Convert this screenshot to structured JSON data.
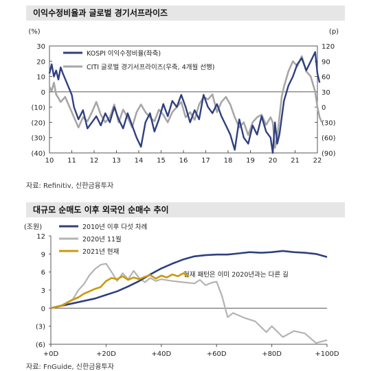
{
  "chart_data": [
    {
      "type": "line",
      "title": "이익수정비율과 글로벌 경기서프라이즈",
      "source": "자료: Refinitiv, 신한금융투자",
      "left_unit": "(%)",
      "right_unit": "(p)",
      "x_tick_labels": [
        "10",
        "11",
        "12",
        "13",
        "14",
        "15",
        "16",
        "17",
        "18",
        "19",
        "20",
        "21",
        "22"
      ],
      "x_range": [
        2010,
        2022
      ],
      "left_ylim": [
        -40,
        30
      ],
      "left_ticks": [
        "30",
        "20",
        "10",
        "0",
        "(10)",
        "(20)",
        "(30)",
        "(40)"
      ],
      "right_ylim": [
        -90,
        120
      ],
      "right_ticks": [
        "120",
        "90",
        "60",
        "30",
        "0",
        "(30)",
        "(60)",
        "(90)"
      ],
      "grid": false,
      "legend_position": "top",
      "series": [
        {
          "name": "KOSPI 이익수정비율(좌축)",
          "color": "#2f3f7f",
          "axis": "left",
          "x": [
            2010.0,
            2010.1,
            2010.2,
            2010.3,
            2010.4,
            2010.5,
            2010.6,
            2010.8,
            2011.0,
            2011.1,
            2011.3,
            2011.5,
            2011.7,
            2011.9,
            2012.1,
            2012.3,
            2012.5,
            2012.7,
            2012.9,
            2013.1,
            2013.3,
            2013.5,
            2013.7,
            2013.9,
            2014.1,
            2014.3,
            2014.5,
            2014.7,
            2014.9,
            2015.1,
            2015.3,
            2015.5,
            2015.7,
            2015.9,
            2016.1,
            2016.3,
            2016.5,
            2016.7,
            2016.9,
            2017.1,
            2017.3,
            2017.5,
            2017.7,
            2017.9,
            2018.1,
            2018.3,
            2018.5,
            2018.7,
            2018.9,
            2019.1,
            2019.3,
            2019.5,
            2019.7,
            2019.9,
            2020.0,
            2020.1,
            2020.2,
            2020.3,
            2020.5,
            2020.7,
            2020.9,
            2021.1,
            2021.3,
            2021.5,
            2021.7,
            2021.9,
            2022.0,
            2022.1
          ],
          "y": [
            12,
            18,
            10,
            14,
            8,
            16,
            12,
            5,
            -2,
            -10,
            -18,
            -12,
            -24,
            -20,
            -16,
            -22,
            -14,
            -20,
            -10,
            -18,
            -24,
            -14,
            -22,
            -30,
            -36,
            -20,
            -14,
            -26,
            -18,
            -8,
            -16,
            -6,
            -10,
            -2,
            -10,
            -20,
            -12,
            -18,
            -2,
            -10,
            -14,
            -8,
            -16,
            -22,
            -28,
            -38,
            -18,
            -30,
            -34,
            -22,
            -28,
            -16,
            -26,
            -30,
            -40,
            -20,
            -34,
            -28,
            -6,
            4,
            10,
            18,
            22,
            14,
            20,
            26,
            12,
            6
          ]
        },
        {
          "name": "CITI 글로벌 경기서프라이즈(우축, 4개월 선행)",
          "color": "#a6a6a6",
          "axis": "right",
          "x": [
            2010.0,
            2010.1,
            2010.2,
            2010.3,
            2010.5,
            2010.7,
            2010.9,
            2011.1,
            2011.3,
            2011.5,
            2011.7,
            2011.9,
            2012.1,
            2012.3,
            2012.5,
            2012.7,
            2012.9,
            2013.1,
            2013.3,
            2013.5,
            2013.7,
            2013.9,
            2014.1,
            2014.3,
            2014.5,
            2014.7,
            2014.9,
            2015.1,
            2015.3,
            2015.5,
            2015.7,
            2015.9,
            2016.1,
            2016.3,
            2016.5,
            2016.7,
            2016.9,
            2017.1,
            2017.3,
            2017.5,
            2017.7,
            2017.9,
            2018.1,
            2018.3,
            2018.5,
            2018.7,
            2018.9,
            2019.1,
            2019.3,
            2019.5,
            2019.7,
            2019.9,
            2020.0,
            2020.1,
            2020.2,
            2020.3,
            2020.4,
            2020.5,
            2020.7,
            2020.9,
            2021.1,
            2021.3,
            2021.5,
            2021.7,
            2021.9,
            2022.0,
            2022.1,
            2022.2
          ],
          "y": [
            40,
            32,
            48,
            25,
            10,
            20,
            0,
            -20,
            -40,
            -20,
            -28,
            -10,
            10,
            -15,
            -30,
            -20,
            5,
            -30,
            -5,
            -20,
            -40,
            -10,
            5,
            -10,
            -20,
            -28,
            -5,
            -15,
            -30,
            -10,
            0,
            10,
            -20,
            -10,
            -25,
            5,
            20,
            15,
            25,
            -10,
            10,
            20,
            5,
            -20,
            -40,
            -30,
            -55,
            -30,
            -20,
            -15,
            -35,
            -20,
            -30,
            -80,
            -60,
            -20,
            20,
            40,
            70,
            90,
            80,
            100,
            70,
            60,
            30,
            0,
            -20,
            -30
          ]
        }
      ]
    },
    {
      "type": "line",
      "title": "대규모 순매도 이후 외국인 순매수 추이",
      "source": "자료: FnGuide, 신한금융투자",
      "ylabel": "(조원)",
      "x_tick_labels": [
        "+0D",
        "+20D",
        "+40D",
        "+60D",
        "+80D",
        "+100D"
      ],
      "x_range": [
        0,
        100
      ],
      "ylim": [
        -6,
        12
      ],
      "y_ticks": [
        "12",
        "9",
        "6",
        "3",
        "0",
        "(3)",
        "(6)"
      ],
      "grid": false,
      "legend_position": "top-left",
      "annotation": "현재 패턴은 이미 2020년과는 다른 길",
      "series": [
        {
          "name": "2010년 이후 다섯 차례",
          "color": "#2f3f7f",
          "x": [
            0,
            4,
            8,
            12,
            16,
            20,
            24,
            28,
            32,
            36,
            40,
            44,
            48,
            52,
            56,
            60,
            64,
            68,
            72,
            76,
            80,
            84,
            88,
            92,
            96,
            100
          ],
          "y": [
            0,
            0.4,
            0.8,
            1.2,
            1.6,
            2.2,
            2.8,
            3.6,
            4.5,
            5.6,
            6.6,
            7.4,
            8.1,
            8.6,
            8.8,
            8.9,
            8.9,
            9.1,
            9.3,
            9.2,
            9.3,
            9.5,
            9.3,
            9.2,
            9.0,
            8.5
          ]
        },
        {
          "name": "2020년 11월",
          "color": "#b3b3b3",
          "x": [
            0,
            4,
            8,
            10,
            12,
            14,
            16,
            18,
            20,
            22,
            24,
            26,
            28,
            30,
            32,
            34,
            36,
            38,
            40,
            44,
            48,
            52,
            54,
            56,
            58,
            60,
            62,
            64,
            66,
            70,
            74,
            78,
            80,
            84,
            88,
            92,
            96,
            100
          ],
          "y": [
            0,
            0.5,
            1.5,
            3.0,
            4.0,
            5.5,
            6.5,
            7.2,
            7.4,
            6.0,
            4.5,
            5.8,
            4.8,
            6.2,
            5.0,
            4.3,
            5.0,
            4.5,
            4.8,
            4.5,
            4.3,
            4.1,
            4.7,
            3.8,
            4.2,
            4.4,
            2.0,
            -1.5,
            -0.8,
            -1.6,
            -2.2,
            -4.0,
            -3.0,
            -4.8,
            -3.8,
            -4.2,
            -5.8,
            -5.3
          ]
        },
        {
          "name": "2021년 현재",
          "color": "#c99a06",
          "x": [
            0,
            2,
            4,
            6,
            8,
            10,
            12,
            14,
            16,
            18,
            20,
            22,
            24,
            26,
            28,
            30,
            32,
            34,
            36,
            38,
            40,
            42,
            44,
            46,
            48,
            50
          ],
          "y": [
            0,
            0.2,
            0.4,
            0.9,
            1.4,
            1.8,
            2.4,
            2.8,
            3.2,
            3.5,
            4.5,
            5.0,
            4.8,
            5.3,
            4.7,
            5.1,
            4.8,
            5.2,
            5.5,
            4.9,
            5.4,
            5.1,
            5.6,
            5.3,
            5.8,
            5.2
          ]
        }
      ]
    }
  ]
}
